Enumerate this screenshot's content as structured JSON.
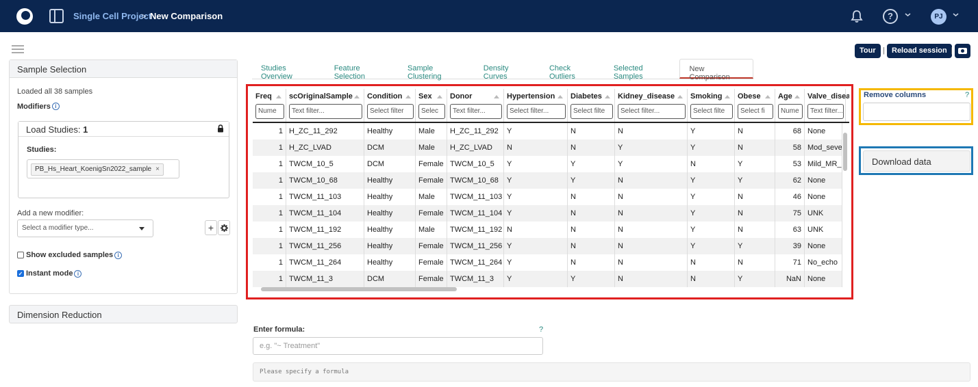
{
  "header": {
    "project": "Single Cell Project",
    "separator": ">",
    "current": "New Comparison",
    "help_symbol": "?",
    "avatar_initials": "PJ"
  },
  "toolbar": {
    "tour": "Tour",
    "divider": "|",
    "reload": "Reload session"
  },
  "sidebar": {
    "title": "Sample Selection",
    "loaded_text": "Loaded all 38 samples",
    "modifiers_label": "Modifiers",
    "load_studies_label": "Load Studies:",
    "load_studies_count": "1",
    "studies_label": "Studies:",
    "study_tag": "PB_Hs_Heart_KoenigSn2022_sample",
    "tag_remove": "×",
    "add_modifier_label": "Add a new modifier:",
    "modifier_placeholder": "Select a modifier type...",
    "add_symbol": "+",
    "show_excluded": "Show excluded samples",
    "show_excluded_checked": false,
    "instant_mode": "Instant mode",
    "instant_mode_checked": true,
    "dimension_reduction": "Dimension Reduction"
  },
  "tabs": [
    "Studies Overview",
    "Feature Selection",
    "Sample Clustering",
    "Density Curves",
    "Check Outliers",
    "Selected Samples",
    "New Comparison"
  ],
  "active_tab": "New Comparison",
  "grid": {
    "columns": [
      {
        "title": "Freq",
        "filter": "Nume"
      },
      {
        "title": "scOriginalSample",
        "filter": "Text filter..."
      },
      {
        "title": "Condition",
        "filter": "Select filter"
      },
      {
        "title": "Sex",
        "filter": "Selec"
      },
      {
        "title": "Donor",
        "filter": "Text filter..."
      },
      {
        "title": "Hypertension",
        "filter": "Select filter..."
      },
      {
        "title": "Diabetes",
        "filter": "Select filte"
      },
      {
        "title": "Kidney_disease",
        "filter": "Select filter..."
      },
      {
        "title": "Smoking",
        "filter": "Select filte"
      },
      {
        "title": "Obese",
        "filter": "Select fi"
      },
      {
        "title": "Age",
        "filter": "Nume"
      },
      {
        "title": "Valve_disea",
        "filter": "Text filter..."
      }
    ],
    "rows": [
      [
        "1",
        "H_ZC_11_292",
        "Healthy",
        "Male",
        "H_ZC_11_292",
        "Y",
        "N",
        "N",
        "Y",
        "N",
        "68",
        "None"
      ],
      [
        "1",
        "H_ZC_LVAD",
        "DCM",
        "Male",
        "H_ZC_LVAD",
        "N",
        "N",
        "Y",
        "Y",
        "N",
        "58",
        "Mod_seve"
      ],
      [
        "1",
        "TWCM_10_5",
        "DCM",
        "Female",
        "TWCM_10_5",
        "Y",
        "Y",
        "Y",
        "N",
        "Y",
        "53",
        "Mild_MR_"
      ],
      [
        "1",
        "TWCM_10_68",
        "Healthy",
        "Female",
        "TWCM_10_68",
        "Y",
        "Y",
        "N",
        "Y",
        "Y",
        "62",
        "None"
      ],
      [
        "1",
        "TWCM_11_103",
        "Healthy",
        "Male",
        "TWCM_11_103",
        "Y",
        "N",
        "N",
        "Y",
        "N",
        "46",
        "None"
      ],
      [
        "1",
        "TWCM_11_104",
        "Healthy",
        "Female",
        "TWCM_11_104",
        "Y",
        "N",
        "N",
        "Y",
        "N",
        "75",
        "UNK"
      ],
      [
        "1",
        "TWCM_11_192",
        "Healthy",
        "Male",
        "TWCM_11_192",
        "N",
        "N",
        "N",
        "Y",
        "N",
        "63",
        "UNK"
      ],
      [
        "1",
        "TWCM_11_256",
        "Healthy",
        "Female",
        "TWCM_11_256",
        "Y",
        "N",
        "N",
        "Y",
        "Y",
        "39",
        "None"
      ],
      [
        "1",
        "TWCM_11_264",
        "Healthy",
        "Female",
        "TWCM_11_264",
        "Y",
        "N",
        "N",
        "N",
        "N",
        "71",
        "No_echo"
      ],
      [
        "1",
        "TWCM_11_3",
        "DCM",
        "Female",
        "TWCM_11_3",
        "Y",
        "Y",
        "N",
        "N",
        "Y",
        "NaN",
        "None"
      ]
    ]
  },
  "right_panel": {
    "remove_columns_label": "Remove columns",
    "remove_help": "?",
    "download_label": "Download data"
  },
  "formula": {
    "label": "Enter formula:",
    "help": "?",
    "placeholder": "e.g. \"~ Treatment\"",
    "message": "Please specify a formula"
  },
  "colors": {
    "navbar": "#0b2650",
    "grid_highlight": "#e02020",
    "remove_highlight": "#f5b800",
    "download_highlight": "#1e78b4",
    "tab_link": "#2a8a80"
  }
}
